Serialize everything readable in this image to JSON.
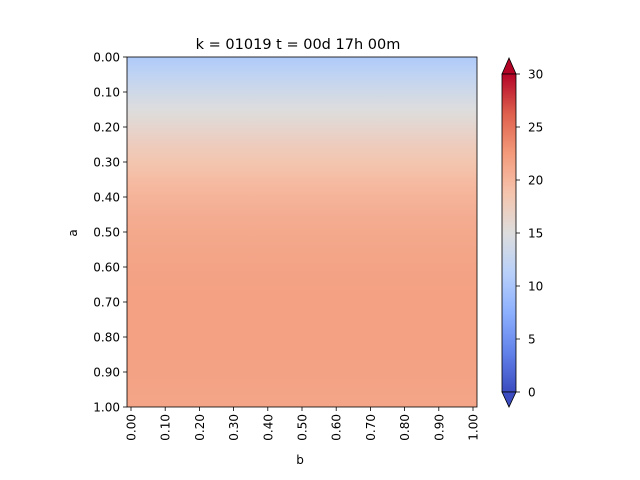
{
  "chart_data": {
    "type": "heatmap",
    "title": "k = 01019 t = 00d 17h 00m",
    "xlabel": "b",
    "ylabel": "a",
    "x_range": [
      0.0,
      1.0
    ],
    "y_range": [
      0.0,
      1.0
    ],
    "y_inverted": true,
    "x_ticks": [
      "0.00",
      "0.10",
      "0.20",
      "0.30",
      "0.40",
      "0.50",
      "0.60",
      "0.70",
      "0.80",
      "0.90",
      "1.00"
    ],
    "y_ticks": [
      "0.00",
      "0.10",
      "0.20",
      "0.30",
      "0.40",
      "0.50",
      "0.60",
      "0.70",
      "0.80",
      "0.90",
      "1.00"
    ],
    "colormap": "coolwarm",
    "colorbar": {
      "vmin": 0,
      "vmax": 30,
      "ticks": [
        "0",
        "5",
        "10",
        "15",
        "20",
        "25",
        "30"
      ],
      "extend": "both"
    },
    "profile_along_a": {
      "a": [
        0.0,
        0.05,
        0.1,
        0.15,
        0.2,
        0.25,
        0.3,
        0.35,
        0.4,
        0.45,
        0.5,
        0.6,
        0.7,
        0.8,
        0.9,
        1.0
      ],
      "value": [
        10.5,
        12.0,
        13.5,
        15.0,
        16.2,
        17.5,
        18.5,
        19.5,
        20.2,
        20.8,
        21.2,
        21.7,
        22.0,
        22.0,
        21.8,
        21.5
      ]
    },
    "grid": false
  }
}
